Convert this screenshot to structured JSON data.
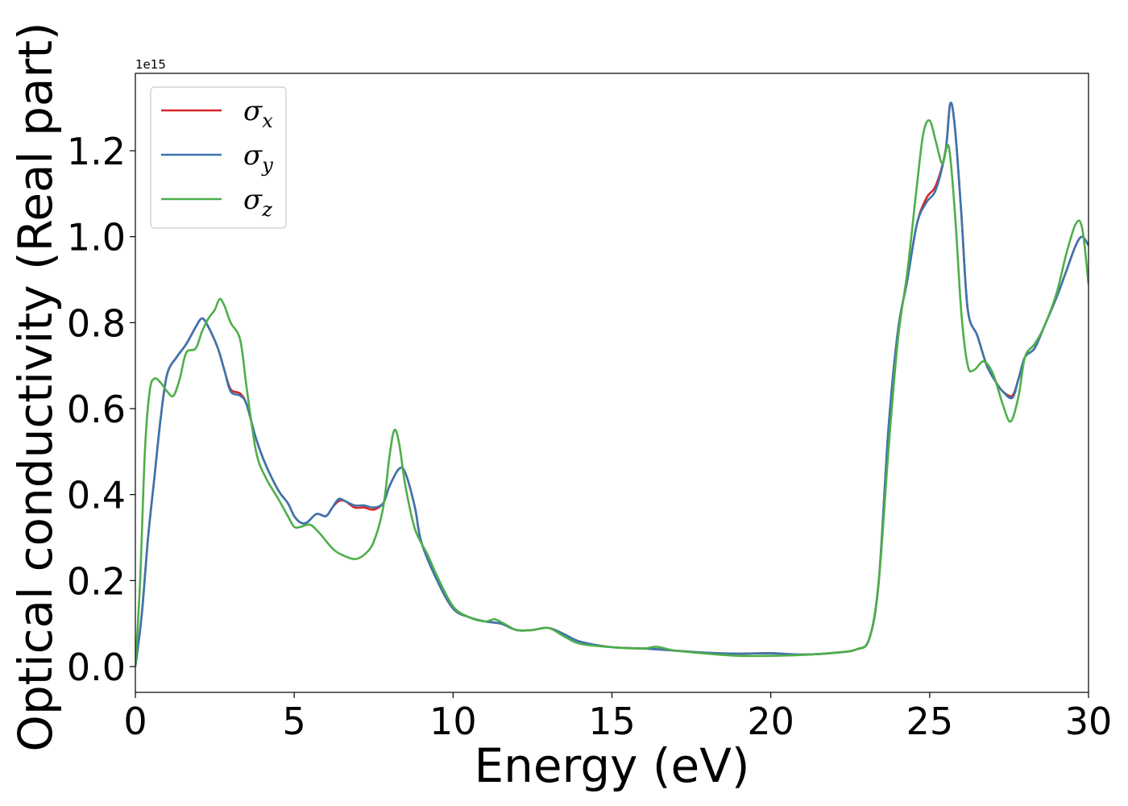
{
  "chart_data": {
    "type": "line",
    "title": "",
    "xlabel": "Energy (eV)",
    "ylabel": "Optical conductivity (Real part)",
    "y_offset_text": "1e15",
    "xlim": [
      0,
      30
    ],
    "ylim": [
      -0.06,
      1.38
    ],
    "x_ticks": [
      0,
      5,
      10,
      15,
      20,
      25,
      30
    ],
    "y_ticks": [
      0.0,
      0.2,
      0.4,
      0.6,
      0.8,
      1.0,
      1.2
    ],
    "y_tick_labels": [
      "0.0",
      "0.2",
      "0.4",
      "0.6",
      "0.8",
      "1.0",
      "1.2"
    ],
    "grid": false,
    "legend_position": "top-left",
    "series": [
      {
        "name": "σx",
        "legend_main": "σ",
        "legend_sub": "x",
        "color": "#d62728",
        "points": [
          [
            0,
            0.0
          ],
          [
            0.2,
            0.12
          ],
          [
            0.4,
            0.3
          ],
          [
            0.6,
            0.44
          ],
          [
            0.8,
            0.58
          ],
          [
            1.0,
            0.68
          ],
          [
            1.3,
            0.72
          ],
          [
            1.6,
            0.75
          ],
          [
            1.9,
            0.79
          ],
          [
            2.1,
            0.81
          ],
          [
            2.3,
            0.79
          ],
          [
            2.6,
            0.74
          ],
          [
            2.8,
            0.69
          ],
          [
            3.0,
            0.645
          ],
          [
            3.3,
            0.635
          ],
          [
            3.5,
            0.61
          ],
          [
            3.8,
            0.53
          ],
          [
            4.1,
            0.47
          ],
          [
            4.5,
            0.41
          ],
          [
            4.8,
            0.38
          ],
          [
            5.0,
            0.35
          ],
          [
            5.2,
            0.335
          ],
          [
            5.4,
            0.335
          ],
          [
            5.7,
            0.355
          ],
          [
            6.0,
            0.35
          ],
          [
            6.2,
            0.37
          ],
          [
            6.4,
            0.385
          ],
          [
            6.6,
            0.385
          ],
          [
            6.9,
            0.37
          ],
          [
            7.2,
            0.37
          ],
          [
            7.5,
            0.365
          ],
          [
            7.8,
            0.38
          ],
          [
            8.0,
            0.42
          ],
          [
            8.3,
            0.46
          ],
          [
            8.5,
            0.45
          ],
          [
            8.8,
            0.37
          ],
          [
            9.0,
            0.29
          ],
          [
            9.5,
            0.2
          ],
          [
            10.0,
            0.135
          ],
          [
            10.5,
            0.115
          ],
          [
            11.0,
            0.105
          ],
          [
            11.5,
            0.1
          ],
          [
            12.0,
            0.085
          ],
          [
            12.5,
            0.085
          ],
          [
            13.0,
            0.09
          ],
          [
            13.5,
            0.075
          ],
          [
            14.0,
            0.058
          ],
          [
            15.0,
            0.045
          ],
          [
            16.0,
            0.042
          ],
          [
            17.0,
            0.037
          ],
          [
            18.0,
            0.032
          ],
          [
            19.0,
            0.03
          ],
          [
            20.0,
            0.031
          ],
          [
            21.0,
            0.028
          ],
          [
            22.0,
            0.032
          ],
          [
            22.7,
            0.04
          ],
          [
            23.1,
            0.065
          ],
          [
            23.4,
            0.2
          ],
          [
            23.7,
            0.55
          ],
          [
            24.0,
            0.78
          ],
          [
            24.3,
            0.9
          ],
          [
            24.6,
            1.03
          ],
          [
            24.9,
            1.09
          ],
          [
            25.2,
            1.12
          ],
          [
            25.5,
            1.2
          ],
          [
            25.65,
            1.31
          ],
          [
            25.8,
            1.25
          ],
          [
            26.0,
            1.05
          ],
          [
            26.2,
            0.83
          ],
          [
            26.5,
            0.77
          ],
          [
            26.8,
            0.7
          ],
          [
            27.1,
            0.66
          ],
          [
            27.3,
            0.64
          ],
          [
            27.6,
            0.63
          ],
          [
            27.8,
            0.67
          ],
          [
            28.0,
            0.72
          ],
          [
            28.3,
            0.74
          ],
          [
            28.6,
            0.79
          ],
          [
            29.0,
            0.86
          ],
          [
            29.3,
            0.92
          ],
          [
            29.6,
            0.98
          ],
          [
            29.8,
            1.0
          ],
          [
            30.0,
            0.98
          ]
        ]
      },
      {
        "name": "σy",
        "legend_main": "σ",
        "legend_sub": "y",
        "color": "#3b75af",
        "points": [
          [
            0,
            0.0
          ],
          [
            0.2,
            0.12
          ],
          [
            0.4,
            0.3
          ],
          [
            0.6,
            0.44
          ],
          [
            0.8,
            0.58
          ],
          [
            1.0,
            0.68
          ],
          [
            1.3,
            0.72
          ],
          [
            1.6,
            0.75
          ],
          [
            1.9,
            0.79
          ],
          [
            2.1,
            0.81
          ],
          [
            2.3,
            0.79
          ],
          [
            2.6,
            0.74
          ],
          [
            2.8,
            0.69
          ],
          [
            3.0,
            0.64
          ],
          [
            3.3,
            0.63
          ],
          [
            3.5,
            0.61
          ],
          [
            3.8,
            0.53
          ],
          [
            4.1,
            0.47
          ],
          [
            4.5,
            0.41
          ],
          [
            4.8,
            0.38
          ],
          [
            5.0,
            0.35
          ],
          [
            5.2,
            0.335
          ],
          [
            5.4,
            0.335
          ],
          [
            5.7,
            0.355
          ],
          [
            6.0,
            0.35
          ],
          [
            6.2,
            0.37
          ],
          [
            6.4,
            0.39
          ],
          [
            6.6,
            0.385
          ],
          [
            6.9,
            0.375
          ],
          [
            7.2,
            0.375
          ],
          [
            7.5,
            0.37
          ],
          [
            7.8,
            0.38
          ],
          [
            8.0,
            0.42
          ],
          [
            8.3,
            0.46
          ],
          [
            8.5,
            0.45
          ],
          [
            8.8,
            0.37
          ],
          [
            9.0,
            0.29
          ],
          [
            9.5,
            0.2
          ],
          [
            10.0,
            0.135
          ],
          [
            10.5,
            0.115
          ],
          [
            11.0,
            0.105
          ],
          [
            11.5,
            0.1
          ],
          [
            12.0,
            0.085
          ],
          [
            12.5,
            0.085
          ],
          [
            13.0,
            0.09
          ],
          [
            13.5,
            0.075
          ],
          [
            14.0,
            0.058
          ],
          [
            15.0,
            0.045
          ],
          [
            16.0,
            0.042
          ],
          [
            17.0,
            0.037
          ],
          [
            18.0,
            0.032
          ],
          [
            19.0,
            0.03
          ],
          [
            20.0,
            0.031
          ],
          [
            21.0,
            0.028
          ],
          [
            22.0,
            0.032
          ],
          [
            22.7,
            0.04
          ],
          [
            23.1,
            0.065
          ],
          [
            23.4,
            0.2
          ],
          [
            23.7,
            0.55
          ],
          [
            24.0,
            0.78
          ],
          [
            24.3,
            0.9
          ],
          [
            24.6,
            1.03
          ],
          [
            24.9,
            1.08
          ],
          [
            25.2,
            1.11
          ],
          [
            25.5,
            1.2
          ],
          [
            25.65,
            1.31
          ],
          [
            25.8,
            1.25
          ],
          [
            26.0,
            1.05
          ],
          [
            26.2,
            0.83
          ],
          [
            26.5,
            0.77
          ],
          [
            26.8,
            0.7
          ],
          [
            27.1,
            0.66
          ],
          [
            27.3,
            0.64
          ],
          [
            27.6,
            0.625
          ],
          [
            27.8,
            0.67
          ],
          [
            28.0,
            0.72
          ],
          [
            28.3,
            0.74
          ],
          [
            28.6,
            0.79
          ],
          [
            29.0,
            0.86
          ],
          [
            29.3,
            0.92
          ],
          [
            29.6,
            0.98
          ],
          [
            29.8,
            1.0
          ],
          [
            30.0,
            0.98
          ]
        ]
      },
      {
        "name": "σz",
        "legend_main": "σ",
        "legend_sub": "z",
        "color": "#4daf4a",
        "points": [
          [
            0,
            0.0
          ],
          [
            0.15,
            0.2
          ],
          [
            0.3,
            0.5
          ],
          [
            0.45,
            0.64
          ],
          [
            0.6,
            0.67
          ],
          [
            0.8,
            0.66
          ],
          [
            1.0,
            0.64
          ],
          [
            1.2,
            0.63
          ],
          [
            1.4,
            0.67
          ],
          [
            1.6,
            0.73
          ],
          [
            1.9,
            0.74
          ],
          [
            2.1,
            0.78
          ],
          [
            2.3,
            0.81
          ],
          [
            2.5,
            0.83
          ],
          [
            2.65,
            0.855
          ],
          [
            2.8,
            0.84
          ],
          [
            3.0,
            0.8
          ],
          [
            3.3,
            0.76
          ],
          [
            3.5,
            0.65
          ],
          [
            3.8,
            0.5
          ],
          [
            4.1,
            0.44
          ],
          [
            4.5,
            0.39
          ],
          [
            4.8,
            0.35
          ],
          [
            5.0,
            0.325
          ],
          [
            5.2,
            0.325
          ],
          [
            5.5,
            0.33
          ],
          [
            5.8,
            0.31
          ],
          [
            6.2,
            0.275
          ],
          [
            6.5,
            0.26
          ],
          [
            6.9,
            0.25
          ],
          [
            7.2,
            0.26
          ],
          [
            7.5,
            0.29
          ],
          [
            7.8,
            0.37
          ],
          [
            8.0,
            0.49
          ],
          [
            8.15,
            0.55
          ],
          [
            8.3,
            0.52
          ],
          [
            8.5,
            0.42
          ],
          [
            8.8,
            0.32
          ],
          [
            9.2,
            0.26
          ],
          [
            9.5,
            0.21
          ],
          [
            10.0,
            0.14
          ],
          [
            10.5,
            0.115
          ],
          [
            11.0,
            0.105
          ],
          [
            11.3,
            0.11
          ],
          [
            11.6,
            0.1
          ],
          [
            12.0,
            0.085
          ],
          [
            12.5,
            0.085
          ],
          [
            13.0,
            0.09
          ],
          [
            13.5,
            0.07
          ],
          [
            14.0,
            0.053
          ],
          [
            15.0,
            0.045
          ],
          [
            16.0,
            0.042
          ],
          [
            16.4,
            0.046
          ],
          [
            17.0,
            0.037
          ],
          [
            18.0,
            0.03
          ],
          [
            19.0,
            0.025
          ],
          [
            20.0,
            0.025
          ],
          [
            21.0,
            0.027
          ],
          [
            22.0,
            0.032
          ],
          [
            22.7,
            0.04
          ],
          [
            23.1,
            0.065
          ],
          [
            23.4,
            0.2
          ],
          [
            23.7,
            0.5
          ],
          [
            24.0,
            0.76
          ],
          [
            24.3,
            0.92
          ],
          [
            24.6,
            1.12
          ],
          [
            24.8,
            1.24
          ],
          [
            25.0,
            1.27
          ],
          [
            25.2,
            1.22
          ],
          [
            25.4,
            1.17
          ],
          [
            25.6,
            1.21
          ],
          [
            25.8,
            1.05
          ],
          [
            26.0,
            0.82
          ],
          [
            26.2,
            0.7
          ],
          [
            26.4,
            0.69
          ],
          [
            26.7,
            0.71
          ],
          [
            27.0,
            0.68
          ],
          [
            27.3,
            0.61
          ],
          [
            27.55,
            0.57
          ],
          [
            27.8,
            0.63
          ],
          [
            28.0,
            0.72
          ],
          [
            28.3,
            0.75
          ],
          [
            28.6,
            0.79
          ],
          [
            29.0,
            0.87
          ],
          [
            29.3,
            0.96
          ],
          [
            29.6,
            1.03
          ],
          [
            29.8,
            1.02
          ],
          [
            30.0,
            0.89
          ]
        ]
      }
    ]
  }
}
